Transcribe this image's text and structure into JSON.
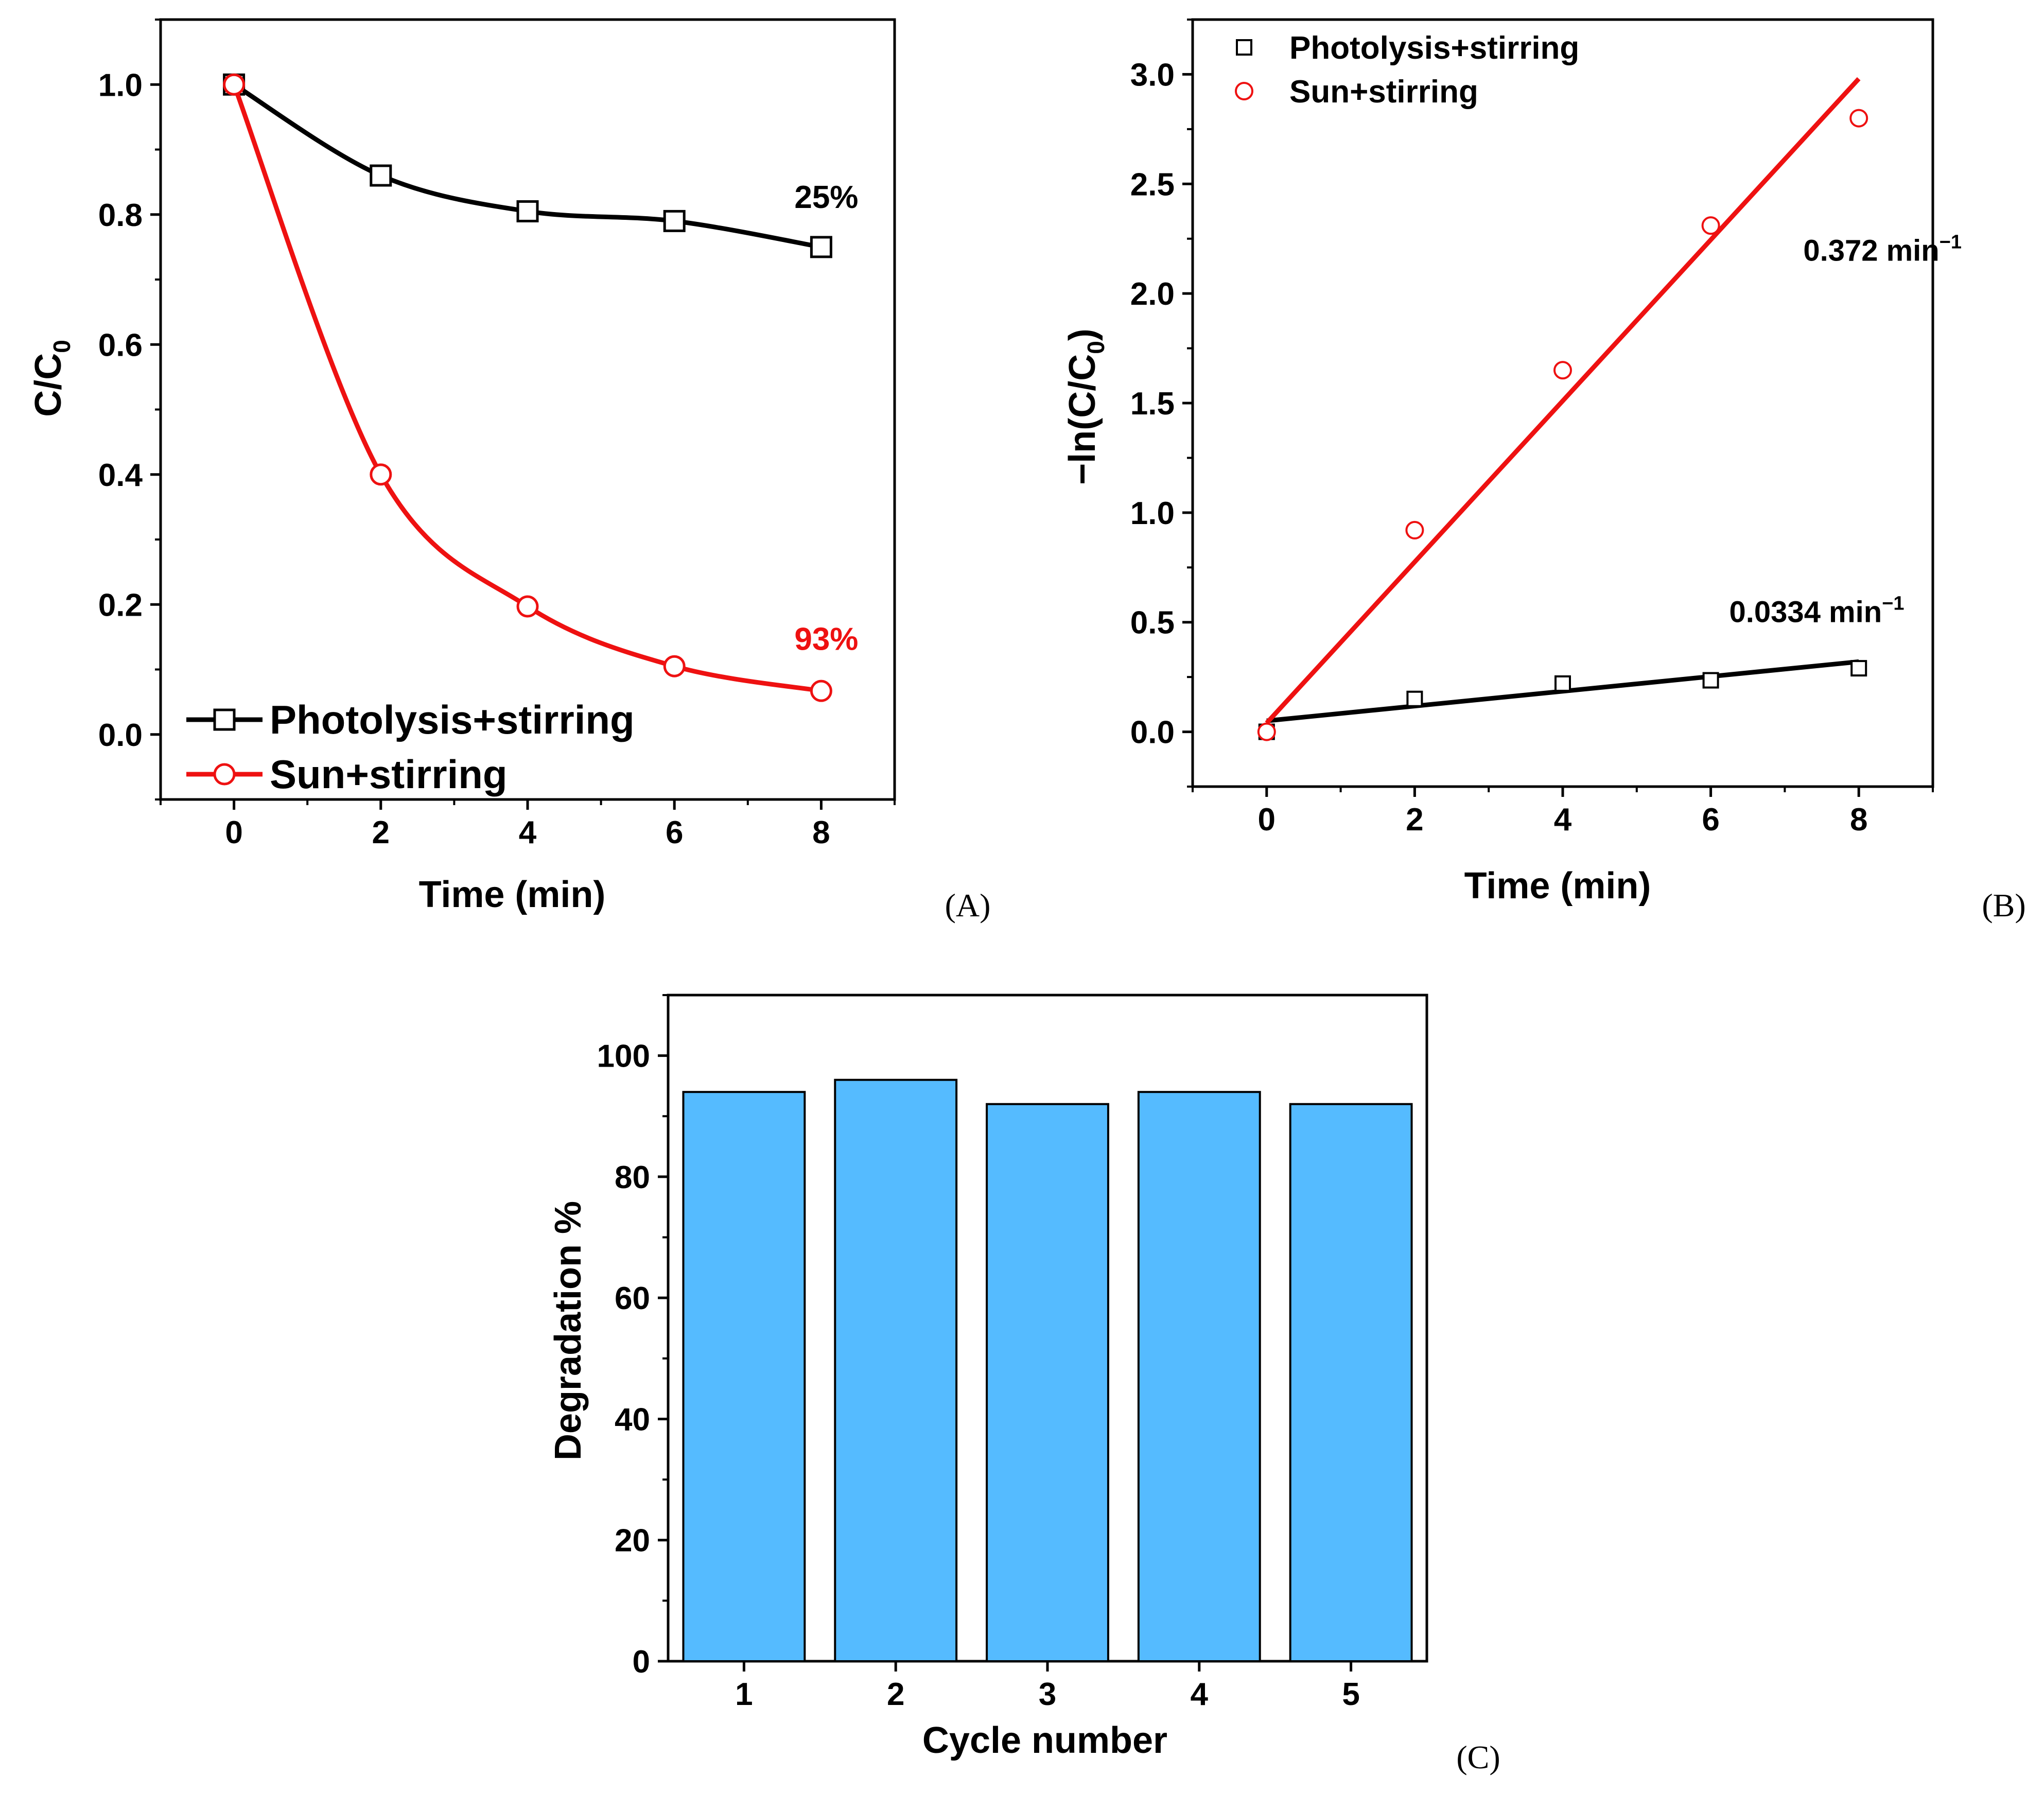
{
  "chart_data": [
    {
      "panel_label": "(A)",
      "type": "line",
      "xlabel": "Time (min)",
      "ylabel": "C/C",
      "ylabel_subscript": "0",
      "xlim": [
        -1,
        9
      ],
      "ylim": [
        -0.1,
        1.1
      ],
      "xticks": [
        0,
        2,
        4,
        6,
        8
      ],
      "yticks": [
        0.0,
        0.2,
        0.4,
        0.6,
        0.8,
        1.0
      ],
      "tick_labels_x": [
        "0",
        "2",
        "4",
        "6",
        "8"
      ],
      "tick_labels_y": [
        "0.0",
        "0.2",
        "0.4",
        "0.6",
        "0.8",
        "1.0"
      ],
      "legend_position": "bottom-left",
      "series": [
        {
          "name": "Photolysis+stirring",
          "color": "#000000",
          "marker": "square",
          "x": [
            0,
            2,
            4,
            6,
            8
          ],
          "values": [
            1.0,
            0.86,
            0.805,
            0.79,
            0.75
          ]
        },
        {
          "name": "Sun+stirring",
          "color": "#ee1111",
          "marker": "circle",
          "x": [
            0,
            2,
            4,
            6,
            8
          ],
          "values": [
            1.0,
            0.4,
            0.197,
            0.105,
            0.067
          ]
        }
      ],
      "annotations": [
        {
          "text": "25%",
          "x": 8,
          "y": 0.81,
          "color": "#000000"
        },
        {
          "text": "93%",
          "x": 8,
          "y": 0.13,
          "color": "#ee1111"
        }
      ]
    },
    {
      "panel_label": "(B)",
      "type": "scatter",
      "xlabel": "Time (min)",
      "ylabel_prefix": "−ln(C/C",
      "ylabel_subscript": "0",
      "ylabel_suffix": ")",
      "xlim": [
        -1,
        9
      ],
      "ylim": [
        -0.25,
        3.25
      ],
      "xticks": [
        0,
        2,
        4,
        6,
        8
      ],
      "yticks": [
        0.0,
        0.5,
        1.0,
        1.5,
        2.0,
        2.5,
        3.0
      ],
      "tick_labels_x": [
        "0",
        "2",
        "4",
        "6",
        "8"
      ],
      "tick_labels_y": [
        "0.0",
        "0.5",
        "1.0",
        "1.5",
        "2.0",
        "2.5",
        "3.0"
      ],
      "legend_position": "top-left",
      "series": [
        {
          "name": "Photolysis+stirring",
          "color": "#000000",
          "marker": "square",
          "x": [
            0,
            2,
            4,
            6,
            8
          ],
          "values": [
            0.0,
            0.15,
            0.22,
            0.235,
            0.29
          ],
          "fit": {
            "x": [
              0,
              8
            ],
            "y": [
              0.05,
              0.32
            ]
          }
        },
        {
          "name": "Sun+stirring",
          "color": "#ee1111",
          "marker": "circle",
          "x": [
            0,
            2,
            4,
            6,
            8
          ],
          "values": [
            0.0,
            0.92,
            1.65,
            2.31,
            2.8
          ],
          "fit": {
            "x": [
              0,
              8
            ],
            "y": [
              0.04,
              2.98
            ]
          }
        }
      ],
      "annotations": [
        {
          "text": "0.372 min",
          "sup": "−1",
          "x": 7.25,
          "y": 2.15
        },
        {
          "text": "0.0334 min",
          "sup": "−1",
          "x": 6.25,
          "y": 0.5
        }
      ]
    },
    {
      "panel_label": "(C)",
      "type": "bar",
      "xlabel": "Cycle number",
      "ylabel": "Degradation %",
      "categories": [
        "1",
        "2",
        "3",
        "4",
        "5"
      ],
      "values": [
        94,
        96,
        92,
        94,
        92
      ],
      "ylim": [
        0,
        110
      ],
      "yticks": [
        0,
        20,
        40,
        60,
        80,
        100
      ],
      "tick_labels_y": [
        "0",
        "20",
        "40",
        "60",
        "80",
        "100"
      ],
      "bar_color": "#55bbff"
    }
  ]
}
